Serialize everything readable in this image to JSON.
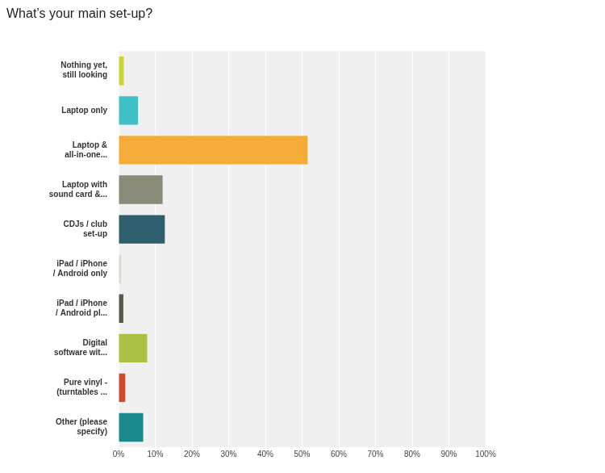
{
  "chart_data": {
    "type": "bar",
    "orientation": "horizontal",
    "title": "What’s your main set-up?",
    "categories": [
      [
        "Nothing yet,",
        "still looking"
      ],
      [
        "Laptop only"
      ],
      [
        "Laptop &",
        "all-in-one..."
      ],
      [
        "Laptop with",
        "sound card &..."
      ],
      [
        "CDJs / club",
        "set-up"
      ],
      [
        "iPad / iPhone",
        "/ Android only"
      ],
      [
        "iPad / iPhone",
        "/ Android pl..."
      ],
      [
        "Digital",
        "software wit..."
      ],
      [
        "Pure vinyl -",
        "(turntables ..."
      ],
      [
        "Other (please",
        "specify)"
      ]
    ],
    "values": [
      1.4,
      5.3,
      51.5,
      12,
      12.6,
      0.7,
      1.3,
      7.8,
      1.8,
      6.7
    ],
    "colors": [
      "#c9d437",
      "#3ec1c4",
      "#f5ab38",
      "#8a8a78",
      "#2f5f6f",
      "#d9d9cc",
      "#565a48",
      "#a9c043",
      "#d2492a",
      "#19898b"
    ],
    "xlim": [
      0,
      100
    ],
    "xticks": [
      {
        "value": 0,
        "label": "0%"
      },
      {
        "value": 10,
        "label": "10%"
      },
      {
        "value": 20,
        "label": "20%"
      },
      {
        "value": 30,
        "label": "30%"
      },
      {
        "value": 40,
        "label": "40%"
      },
      {
        "value": 50,
        "label": "50%"
      },
      {
        "value": 60,
        "label": "60%"
      },
      {
        "value": 70,
        "label": "70%"
      },
      {
        "value": 80,
        "label": "80%"
      },
      {
        "value": 90,
        "label": "90%"
      },
      {
        "value": 100,
        "label": "100%"
      }
    ],
    "grid": true,
    "data_labels": false
  }
}
